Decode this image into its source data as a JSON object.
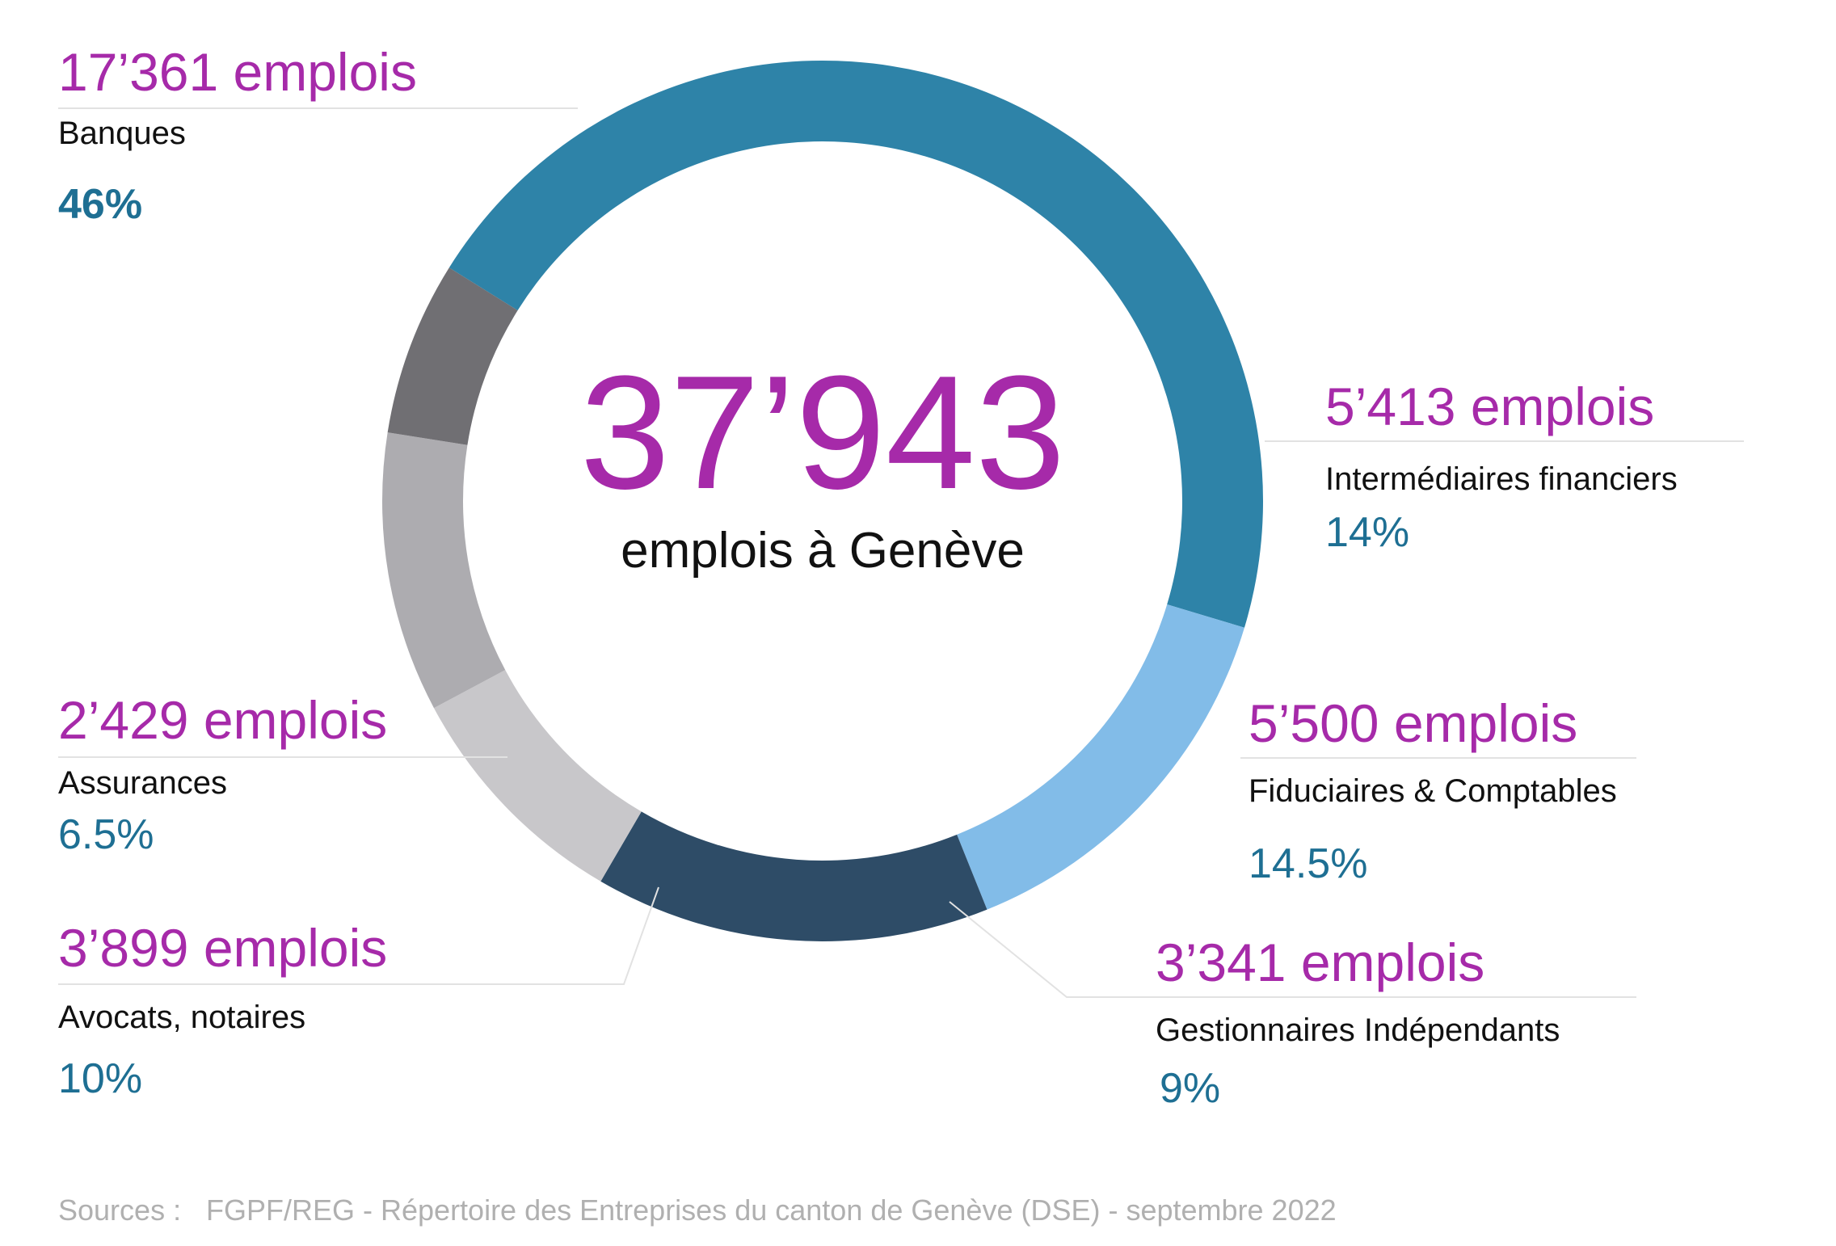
{
  "chart_data": {
    "type": "pie",
    "donut": true,
    "total": {
      "value": "37’943",
      "caption": "emplois à Genève"
    },
    "slices": [
      {
        "key": "banques",
        "count_label": "17’361 emplois",
        "name": "Banques",
        "pct_label": "46%",
        "value": 17361,
        "share": 46,
        "color": "#2e83a8"
      },
      {
        "key": "intermediaires",
        "count_label": "5’413 emplois",
        "name": "Intermédiaires financiers",
        "pct_label": "14%",
        "value": 5413,
        "share": 14,
        "color": "#82bce8"
      },
      {
        "key": "fiduciaires",
        "count_label": "5’500 emplois",
        "name": "Fiduciaires & Comptables",
        "pct_label": "14.5%",
        "value": 5500,
        "share": 14.5,
        "color": "#2e4c67"
      },
      {
        "key": "gestionnaires",
        "count_label": "3’341 emplois",
        "name": "Gestionnaires Indépendants",
        "pct_label": "9%",
        "value": 3341,
        "share": 9,
        "color": "#c8c7ca"
      },
      {
        "key": "avocats",
        "count_label": "3’899 emplois",
        "name": "Avocats, notaires",
        "pct_label": "10%",
        "value": 3899,
        "share": 10,
        "color": "#adacb0"
      },
      {
        "key": "assurances",
        "count_label": "2’429 emplois",
        "name": "Assurances",
        "pct_label": "6.5%",
        "value": 2429,
        "share": 6.5,
        "color": "#706f73"
      }
    ],
    "label_colors": {
      "count": "#a62aa9",
      "name": "#111111",
      "pct": "#1e6f93"
    }
  },
  "source": {
    "prefix": "Sources :",
    "text": "FGPF/REG - Répertoire des Entreprises du canton de Genève (DSE) - septembre 2022"
  }
}
